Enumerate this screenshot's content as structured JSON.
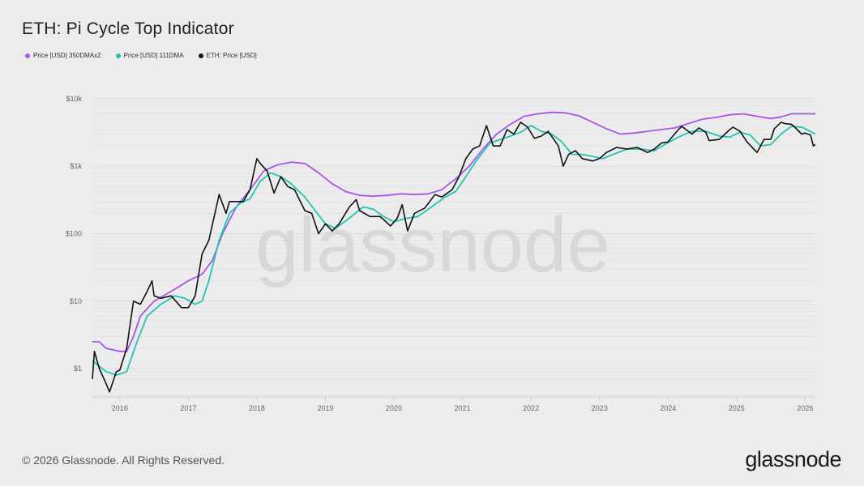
{
  "header": {
    "title": "ETH: Pi Cycle Top Indicator"
  },
  "footer": {
    "copyright": "© 2026 Glassnode. All Rights Reserved.",
    "logo": "glassnode"
  },
  "watermark": "glassnode",
  "chart_data": {
    "type": "line",
    "title": "ETH: Pi Cycle Top Indicator",
    "xlabel": "",
    "ylabel": "",
    "y_scale": "log",
    "xlim": [
      2015.6,
      2026.15
    ],
    "ylim": [
      0.38,
      16000
    ],
    "grid": true,
    "legend_position": "top-left",
    "x_ticks": [
      2016,
      2017,
      2018,
      2019,
      2020,
      2021,
      2022,
      2023,
      2024,
      2025,
      2026
    ],
    "x_tick_labels": [
      "2016",
      "2017",
      "2018",
      "2019",
      "2020",
      "2021",
      "2022",
      "2023",
      "2024",
      "2025",
      "2026"
    ],
    "y_ticks": [
      1,
      10,
      100,
      1000,
      10000
    ],
    "y_tick_labels": [
      "$1",
      "$10",
      "$100",
      "$1k",
      "$10k"
    ],
    "series": [
      {
        "name": "Price [USD] 350DMAx2",
        "color": "#a855e8",
        "x": [
          2015.6,
          2015.7,
          2015.8,
          2016.0,
          2016.1,
          2016.2,
          2016.3,
          2016.5,
          2016.8,
          2017.0,
          2017.2,
          2017.35,
          2017.5,
          2017.7,
          2017.9,
          2018.1,
          2018.3,
          2018.5,
          2018.7,
          2018.9,
          2019.1,
          2019.3,
          2019.5,
          2019.7,
          2019.9,
          2020.1,
          2020.3,
          2020.5,
          2020.7,
          2020.9,
          2021.1,
          2021.3,
          2021.5,
          2021.7,
          2021.9,
          2022.1,
          2022.3,
          2022.5,
          2022.7,
          2022.9,
          2023.1,
          2023.3,
          2023.5,
          2023.7,
          2023.9,
          2024.1,
          2024.3,
          2024.5,
          2024.7,
          2024.9,
          2025.1,
          2025.3,
          2025.5,
          2025.65,
          2025.8,
          2026.0,
          2026.15
        ],
        "y": [
          2.5,
          2.5,
          2.0,
          1.8,
          1.8,
          3,
          6,
          10,
          15,
          20,
          25,
          40,
          100,
          250,
          450,
          850,
          1050,
          1150,
          1100,
          800,
          550,
          420,
          370,
          360,
          370,
          390,
          380,
          390,
          450,
          650,
          1000,
          1800,
          3000,
          4200,
          5500,
          6000,
          6300,
          6200,
          5600,
          4500,
          3600,
          3000,
          3100,
          3300,
          3500,
          3700,
          4300,
          5000,
          5300,
          5800,
          6000,
          5500,
          5100,
          5400,
          6000,
          6000,
          6000
        ]
      },
      {
        "name": "Price [USD] 111DMA",
        "color": "#1fc7b0",
        "x": [
          2015.6,
          2015.8,
          2015.95,
          2016.1,
          2016.25,
          2016.4,
          2016.6,
          2016.8,
          2016.95,
          2017.1,
          2017.2,
          2017.3,
          2017.45,
          2017.6,
          2017.75,
          2017.9,
          2018.05,
          2018.2,
          2018.35,
          2018.5,
          2018.7,
          2018.85,
          2019.0,
          2019.15,
          2019.35,
          2019.55,
          2019.7,
          2019.85,
          2020.0,
          2020.2,
          2020.35,
          2020.55,
          2020.75,
          2020.9,
          2021.05,
          2021.2,
          2021.4,
          2021.55,
          2021.7,
          2021.85,
          2022.0,
          2022.15,
          2022.3,
          2022.45,
          2022.6,
          2022.75,
          2022.9,
          2023.05,
          2023.2,
          2023.4,
          2023.6,
          2023.8,
          2023.95,
          2024.15,
          2024.35,
          2024.55,
          2024.75,
          2024.9,
          2025.05,
          2025.2,
          2025.35,
          2025.5,
          2025.65,
          2025.8,
          2025.95,
          2026.05,
          2026.15
        ],
        "y": [
          1.3,
          0.9,
          0.8,
          0.9,
          2.5,
          6,
          9,
          12,
          11,
          9,
          10,
          20,
          80,
          200,
          280,
          330,
          600,
          800,
          700,
          550,
          350,
          220,
          140,
          120,
          170,
          250,
          230,
          180,
          150,
          170,
          180,
          250,
          350,
          420,
          700,
          1200,
          2200,
          2500,
          2800,
          3200,
          4000,
          3300,
          3000,
          2300,
          1500,
          1500,
          1400,
          1300,
          1500,
          1800,
          1800,
          1700,
          2100,
          2700,
          3300,
          3300,
          2800,
          2700,
          3200,
          2900,
          2000,
          2100,
          3000,
          3900,
          3800,
          3400,
          3000
        ]
      },
      {
        "name": "ETH: Price [USD]",
        "color": "#111111",
        "x": [
          2015.6,
          2015.63,
          2015.7,
          2015.8,
          2015.85,
          2015.95,
          2016.0,
          2016.1,
          2016.2,
          2016.3,
          2016.4,
          2016.47,
          2016.5,
          2016.6,
          2016.75,
          2016.9,
          2017.0,
          2017.1,
          2017.2,
          2017.3,
          2017.45,
          2017.55,
          2017.6,
          2017.7,
          2017.8,
          2017.9,
          2018.0,
          2018.05,
          2018.15,
          2018.25,
          2018.35,
          2018.45,
          2018.55,
          2018.7,
          2018.8,
          2018.9,
          2019.0,
          2019.1,
          2019.2,
          2019.35,
          2019.45,
          2019.5,
          2019.65,
          2019.8,
          2019.95,
          2020.05,
          2020.12,
          2020.2,
          2020.3,
          2020.45,
          2020.6,
          2020.7,
          2020.85,
          2020.95,
          2021.05,
          2021.15,
          2021.25,
          2021.35,
          2021.45,
          2021.55,
          2021.65,
          2021.75,
          2021.85,
          2021.95,
          2022.05,
          2022.15,
          2022.25,
          2022.4,
          2022.47,
          2022.55,
          2022.65,
          2022.75,
          2022.9,
          2023.0,
          2023.1,
          2023.25,
          2023.4,
          2023.55,
          2023.7,
          2023.8,
          2023.9,
          2024.0,
          2024.15,
          2024.2,
          2024.35,
          2024.45,
          2024.55,
          2024.6,
          2024.75,
          2024.9,
          2024.95,
          2025.05,
          2025.15,
          2025.3,
          2025.4,
          2025.5,
          2025.55,
          2025.65,
          2025.7,
          2025.8,
          2025.85,
          2025.95,
          2026.0,
          2026.08,
          2026.12,
          2026.15
        ],
        "y": [
          0.7,
          1.8,
          1.0,
          0.6,
          0.45,
          0.9,
          0.95,
          2,
          10,
          9,
          14,
          20,
          12,
          11,
          12,
          8,
          8,
          12,
          50,
          80,
          380,
          200,
          300,
          300,
          300,
          450,
          1300,
          1100,
          850,
          400,
          700,
          500,
          450,
          220,
          200,
          100,
          140,
          110,
          140,
          250,
          320,
          220,
          180,
          180,
          130,
          170,
          270,
          110,
          200,
          240,
          380,
          350,
          450,
          700,
          1300,
          1800,
          2000,
          4000,
          2000,
          2000,
          3500,
          3000,
          4500,
          3800,
          2600,
          2800,
          3300,
          2000,
          1000,
          1500,
          1700,
          1300,
          1200,
          1300,
          1600,
          1900,
          1800,
          1900,
          1600,
          1800,
          2200,
          2300,
          3500,
          3900,
          3000,
          3700,
          3200,
          2400,
          2500,
          3500,
          3800,
          3300,
          2300,
          1600,
          2500,
          2500,
          3600,
          4500,
          4300,
          4200,
          3800,
          3000,
          3100,
          2900,
          2000,
          2100
        ]
      }
    ]
  }
}
